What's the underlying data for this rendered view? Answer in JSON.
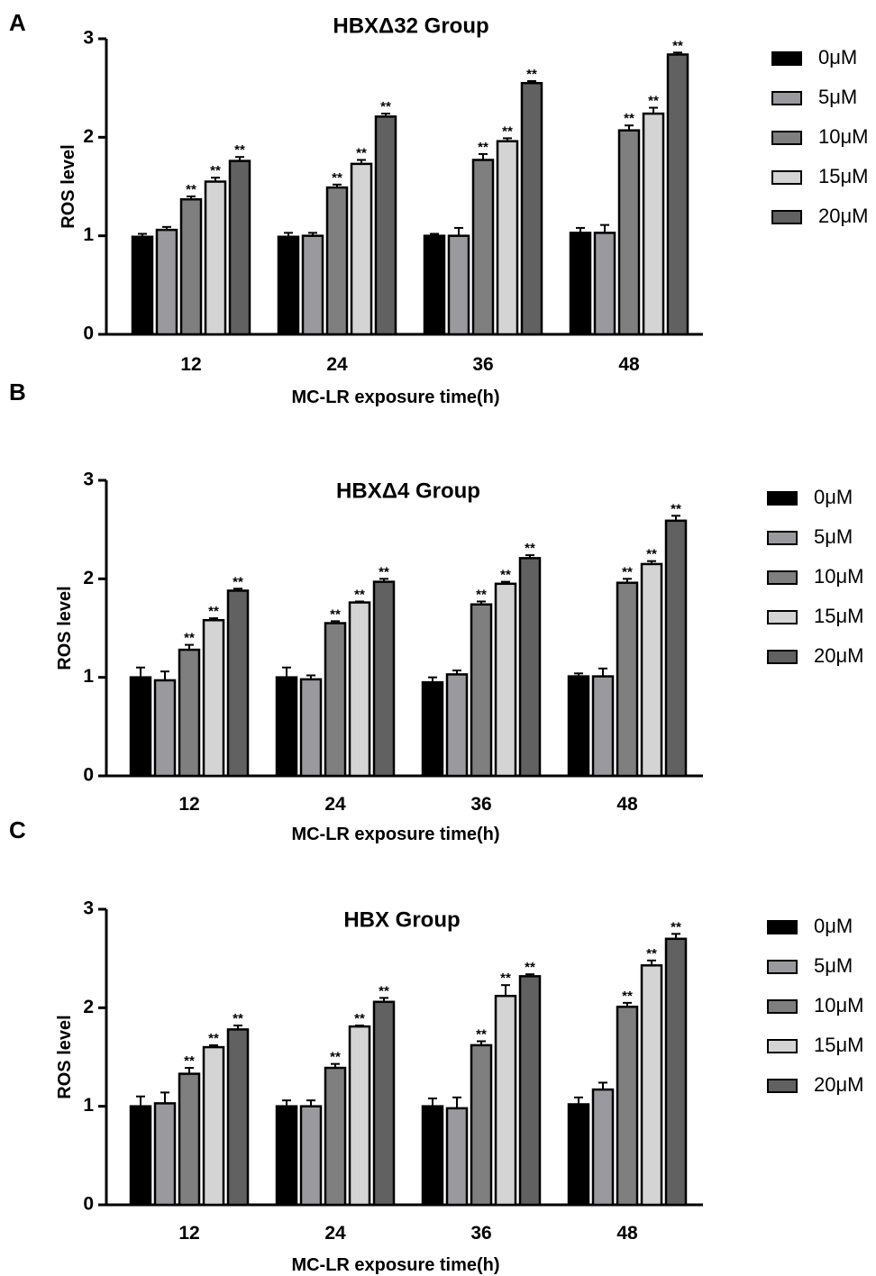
{
  "chart_data": [
    {
      "panel": "A",
      "type": "bar",
      "title": "HBXΔ32 Group",
      "xlabel": "MC-LR exposure time(h)",
      "ylabel": "ROS level",
      "ylim": [
        0,
        3
      ],
      "yticks": [
        "0",
        "1",
        "2",
        "3"
      ],
      "categories": [
        "12",
        "24",
        "36",
        "48"
      ],
      "legend_position": "right",
      "series": [
        {
          "name": "0μM",
          "color": "#000000",
          "values": [
            0.99,
            0.99,
            1.0,
            1.03
          ],
          "errors": [
            0.03,
            0.04,
            0.02,
            0.05
          ],
          "sig": [
            "",
            "",
            "",
            ""
          ]
        },
        {
          "name": "5μM",
          "color": "#9a9a9e",
          "values": [
            1.06,
            1.0,
            1.0,
            1.03
          ],
          "errors": [
            0.03,
            0.03,
            0.08,
            0.08
          ],
          "sig": [
            "",
            "",
            "",
            ""
          ]
        },
        {
          "name": "10μM",
          "color": "#7f7f7f",
          "values": [
            1.37,
            1.49,
            1.77,
            2.07
          ],
          "errors": [
            0.03,
            0.03,
            0.06,
            0.05
          ],
          "sig": [
            "**",
            "**",
            "**",
            "**"
          ]
        },
        {
          "name": "15μM",
          "color": "#d4d4d4",
          "values": [
            1.55,
            1.73,
            1.96,
            2.24
          ],
          "errors": [
            0.04,
            0.04,
            0.03,
            0.06
          ],
          "sig": [
            "**",
            "**",
            "**",
            "**"
          ]
        },
        {
          "name": "20μM",
          "color": "#616161",
          "values": [
            1.76,
            2.21,
            2.55,
            2.84
          ],
          "errors": [
            0.04,
            0.03,
            0.02,
            0.02
          ],
          "sig": [
            "**",
            "**",
            "**",
            "**"
          ]
        }
      ]
    },
    {
      "panel": "B",
      "type": "bar",
      "title": "HBXΔ4 Group",
      "xlabel": "MC-LR exposure time(h)",
      "ylabel": "ROS level",
      "ylim": [
        0,
        3
      ],
      "yticks": [
        "0",
        "1",
        "2",
        "3"
      ],
      "categories": [
        "12",
        "24",
        "36",
        "48"
      ],
      "legend_position": "right",
      "series": [
        {
          "name": "0μM",
          "color": "#000000",
          "values": [
            1.0,
            1.0,
            0.95,
            1.01
          ],
          "errors": [
            0.1,
            0.1,
            0.05,
            0.03
          ],
          "sig": [
            "",
            "",
            "",
            ""
          ]
        },
        {
          "name": "5μM",
          "color": "#9a9a9e",
          "values": [
            0.97,
            0.98,
            1.03,
            1.01
          ],
          "errors": [
            0.09,
            0.04,
            0.04,
            0.08
          ],
          "sig": [
            "",
            "",
            "",
            ""
          ]
        },
        {
          "name": "10μM",
          "color": "#7f7f7f",
          "values": [
            1.28,
            1.55,
            1.74,
            1.96
          ],
          "errors": [
            0.05,
            0.02,
            0.03,
            0.04
          ],
          "sig": [
            "**",
            "**",
            "**",
            "**"
          ]
        },
        {
          "name": "15μM",
          "color": "#d4d4d4",
          "values": [
            1.58,
            1.76,
            1.95,
            2.15
          ],
          "errors": [
            0.02,
            0.01,
            0.02,
            0.03
          ],
          "sig": [
            "**",
            "**",
            "**",
            "**"
          ]
        },
        {
          "name": "20μM",
          "color": "#616161",
          "values": [
            1.88,
            1.97,
            2.21,
            2.59
          ],
          "errors": [
            0.02,
            0.03,
            0.03,
            0.05
          ],
          "sig": [
            "**",
            "**",
            "**",
            "**"
          ]
        }
      ]
    },
    {
      "panel": "C",
      "type": "bar",
      "title": "HBX Group",
      "xlabel": "MC-LR exposure time(h)",
      "ylabel": "ROS level",
      "ylim": [
        0,
        3
      ],
      "yticks": [
        "0",
        "1",
        "2",
        "3"
      ],
      "categories": [
        "12",
        "24",
        "36",
        "48"
      ],
      "legend_position": "right",
      "series": [
        {
          "name": "0μM",
          "color": "#000000",
          "values": [
            1.0,
            1.0,
            1.0,
            1.02
          ],
          "errors": [
            0.1,
            0.06,
            0.08,
            0.07
          ],
          "sig": [
            "",
            "",
            "",
            ""
          ]
        },
        {
          "name": "5μM",
          "color": "#9a9a9e",
          "values": [
            1.03,
            1.0,
            0.98,
            1.17
          ],
          "errors": [
            0.11,
            0.06,
            0.11,
            0.07
          ],
          "sig": [
            "",
            "",
            "",
            ""
          ]
        },
        {
          "name": "10μM",
          "color": "#7f7f7f",
          "values": [
            1.33,
            1.39,
            1.62,
            2.01
          ],
          "errors": [
            0.06,
            0.04,
            0.04,
            0.04
          ],
          "sig": [
            "**",
            "**",
            "**",
            "**"
          ]
        },
        {
          "name": "15μM",
          "color": "#d4d4d4",
          "values": [
            1.6,
            1.81,
            2.12,
            2.43
          ],
          "errors": [
            0.02,
            0.01,
            0.11,
            0.05
          ],
          "sig": [
            "**",
            "**",
            "**",
            "**"
          ]
        },
        {
          "name": "20μM",
          "color": "#616161",
          "values": [
            1.78,
            2.06,
            2.32,
            2.7
          ],
          "errors": [
            0.04,
            0.04,
            0.02,
            0.05
          ],
          "sig": [
            "**",
            "**",
            "**",
            "**"
          ]
        }
      ]
    }
  ]
}
